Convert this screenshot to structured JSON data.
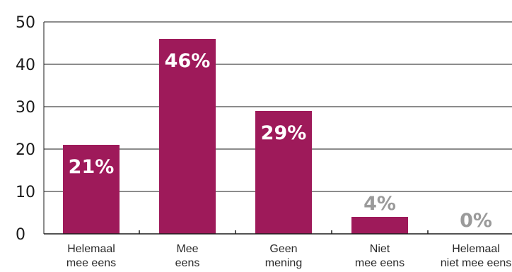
{
  "chart_data": {
    "type": "bar",
    "categories": [
      [
        "Helemaal",
        "mee eens"
      ],
      [
        "Mee",
        "eens"
      ],
      [
        "Geen",
        "mening"
      ],
      [
        "Niet",
        "mee eens"
      ],
      [
        "Helemaal",
        "niet mee eens"
      ]
    ],
    "values": [
      21,
      46,
      29,
      4,
      0
    ],
    "data_labels": [
      "21%",
      "46%",
      "29%",
      "4%",
      "0%"
    ],
    "ylim": [
      0,
      50
    ],
    "yticks": [
      0,
      10,
      20,
      30,
      40,
      50
    ],
    "title": "",
    "xlabel": "",
    "ylabel": "",
    "grid": true,
    "legend": "none"
  },
  "colors": {
    "bar": "#9e1a5a",
    "label_inside": "#ffffff",
    "label_outside": "#9a9a9a",
    "grid": "#1a1a1a"
  }
}
